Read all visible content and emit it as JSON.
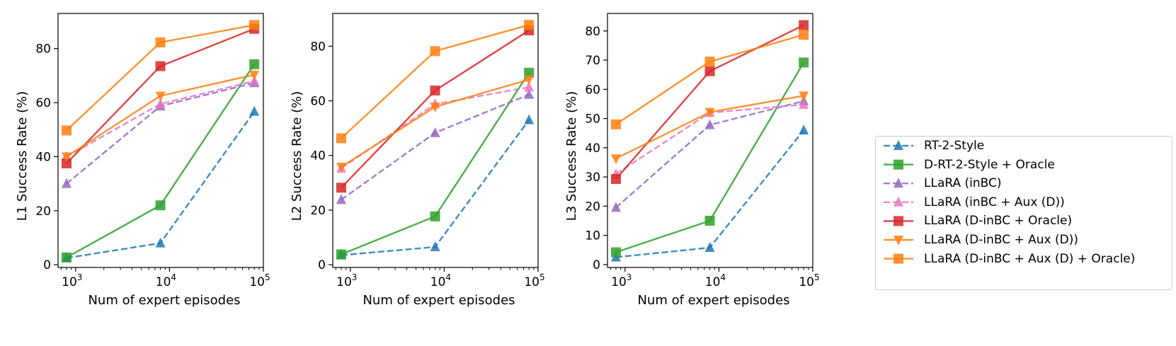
{
  "chart_data": [
    {
      "type": "line",
      "xlabel": "Num of expert episodes",
      "ylabel": "L1 Success Rate (%)",
      "xscale": "log",
      "x": [
        800,
        8000,
        80000
      ],
      "xlim": [
        650,
        100000
      ],
      "xticks": [
        "10^3",
        "10^4",
        "10^5"
      ],
      "ylim": [
        -1,
        93
      ],
      "yticks": [
        0,
        20,
        40,
        60,
        80
      ],
      "series": [
        {
          "name": "RT-2-Style",
          "values": [
            2.5,
            8,
            56.7
          ]
        },
        {
          "name": "D-RT-2-Style + Oracle",
          "values": [
            2.7,
            22,
            74.2
          ]
        },
        {
          "name": "LLaRA (inBC)",
          "values": [
            30,
            58.7,
            67.3
          ]
        },
        {
          "name": "LLaRA (inBC + Aux (D))",
          "values": [
            40,
            59.5,
            68
          ]
        },
        {
          "name": "LLaRA (D-inBC + Oracle)",
          "values": [
            37.5,
            73.5,
            87.3
          ]
        },
        {
          "name": "LLaRA (D-inBC + Aux (D))",
          "values": [
            40,
            62.5,
            70.3
          ]
        },
        {
          "name": "LLaRA (D-inBC + Aux (D) + Oracle)",
          "values": [
            49.7,
            82.3,
            88.7
          ]
        }
      ]
    },
    {
      "type": "line",
      "xlabel": "Num of expert episodes",
      "ylabel": "L2 Success Rate (%)",
      "xscale": "log",
      "x": [
        800,
        8000,
        80000
      ],
      "xlim": [
        650,
        100000
      ],
      "xticks": [
        "10^3",
        "10^4",
        "10^5"
      ],
      "ylim": [
        -1,
        92
      ],
      "yticks": [
        0,
        20,
        40,
        60,
        80
      ],
      "series": [
        {
          "name": "RT-2-Style",
          "values": [
            3.5,
            6.5,
            53
          ]
        },
        {
          "name": "D-RT-2-Style + Oracle",
          "values": [
            3.8,
            17.7,
            70.3
          ]
        },
        {
          "name": "LLaRA (inBC)",
          "values": [
            23.8,
            48.3,
            62.3
          ]
        },
        {
          "name": "LLaRA (inBC + Aux (D))",
          "values": [
            35.3,
            58.8,
            65
          ]
        },
        {
          "name": "LLaRA (D-inBC + Oracle)",
          "values": [
            28.2,
            63.8,
            85.8
          ]
        },
        {
          "name": "LLaRA (D-inBC + Aux (D))",
          "values": [
            35.8,
            57.8,
            67.8
          ]
        },
        {
          "name": "LLaRA (D-inBC + Aux (D) + Oracle)",
          "values": [
            46.3,
            78.2,
            87.8
          ]
        }
      ]
    },
    {
      "type": "line",
      "xlabel": "Num of expert episodes",
      "ylabel": "L3 Success Rate (%)",
      "xscale": "log",
      "x": [
        800,
        8000,
        80000
      ],
      "xlim": [
        650,
        100000
      ],
      "xticks": [
        "10^3",
        "10^4",
        "10^5"
      ],
      "ylim": [
        -1,
        86
      ],
      "yticks": [
        0,
        10,
        20,
        30,
        40,
        50,
        60,
        70,
        80
      ],
      "series": [
        {
          "name": "RT-2-Style",
          "values": [
            2.5,
            5.8,
            46
          ]
        },
        {
          "name": "D-RT-2-Style + Oracle",
          "values": [
            4.2,
            15,
            69.2
          ]
        },
        {
          "name": "LLaRA (inBC)",
          "values": [
            19.5,
            47.8,
            56
          ]
        },
        {
          "name": "LLaRA (inBC + Aux (D))",
          "values": [
            31,
            52,
            54.8
          ]
        },
        {
          "name": "LLaRA (D-inBC + Oracle)",
          "values": [
            29.3,
            66.2,
            82
          ]
        },
        {
          "name": "LLaRA (D-inBC + Aux (D))",
          "values": [
            36.3,
            52.2,
            57.8
          ]
        },
        {
          "name": "LLaRA (D-inBC + Aux (D) + Oracle)",
          "values": [
            48,
            69.5,
            78.7
          ]
        }
      ]
    }
  ],
  "legend": {
    "placement": "right",
    "entries": [
      {
        "label": "RT-2-Style",
        "color": "#1f77b4",
        "marker": "triangle-up",
        "dashed": true
      },
      {
        "label": "D-RT-2-Style + Oracle",
        "color": "#2ca02c",
        "marker": "square",
        "dashed": false
      },
      {
        "label": "LLaRA (inBC)",
        "color": "#9467bd",
        "marker": "triangle-up",
        "dashed": true
      },
      {
        "label": "LLaRA (inBC + Aux (D))",
        "color": "#e377c2",
        "marker": "triangle-up",
        "dashed": true
      },
      {
        "label": "LLaRA (D-inBC + Oracle)",
        "color": "#d62728",
        "marker": "square",
        "dashed": false
      },
      {
        "label": "LLaRA (D-inBC + Aux (D))",
        "color": "#ff7f0e",
        "marker": "triangle-down",
        "dashed": false
      },
      {
        "label": "LLaRA (D-inBC + Aux (D) + Oracle)",
        "color": "#ff7f0e",
        "marker": "square",
        "dashed": false
      }
    ]
  }
}
